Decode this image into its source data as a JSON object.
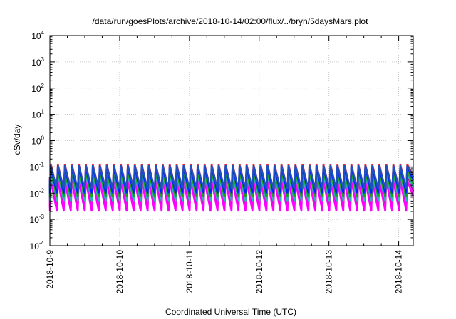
{
  "chart_data": {
    "type": "line",
    "title": "/data/run/goesPlots/archive/2018-10-14/02:00/flux/../bryn/5daysMars.plot",
    "xlabel": "Coordinated Universal Time (UTC)",
    "ylabel": "cSv/day",
    "x_tick_labels": [
      "2018-10-9",
      "2018-10-10",
      "2018-10-11",
      "2018-10-12",
      "2018-10-13",
      "2018-10-14"
    ],
    "xlim": [
      "2018-10-09T00:00",
      "2018-10-14T05:00"
    ],
    "y_scale": "log",
    "ylim": [
      0.0001,
      10000
    ],
    "y_ticks": [
      {
        "value": 0.0001,
        "base": "10",
        "exp": "-4"
      },
      {
        "value": 0.001,
        "base": "10",
        "exp": "-3"
      },
      {
        "value": 0.01,
        "base": "10",
        "exp": "-2"
      },
      {
        "value": 0.1,
        "base": "10",
        "exp": "-1"
      },
      {
        "value": 1,
        "base": "10",
        "exp": "0"
      },
      {
        "value": 10,
        "base": "10",
        "exp": "1"
      },
      {
        "value": 100,
        "base": "10",
        "exp": "2"
      },
      {
        "value": 1000,
        "base": "10",
        "exp": "3"
      },
      {
        "value": 10000,
        "base": "10",
        "exp": "4"
      }
    ],
    "grid": true,
    "legend": "none",
    "pattern": "sawtooth",
    "cycles": 52,
    "series": [
      {
        "color": "#ff2a2a",
        "peak": 0.13,
        "trough": 0.013
      },
      {
        "color": "#b000b0",
        "peak": 0.05,
        "trough": 0.0028
      },
      {
        "color": "#ff00ff",
        "peak": 0.03,
        "trough": 0.002
      },
      {
        "color": "#2ab5b5",
        "peak": 0.055,
        "trough": 0.005
      },
      {
        "color": "#1aa01a",
        "peak": 0.07,
        "trough": 0.007
      },
      {
        "color": "#0022ff",
        "peak": 0.1,
        "trough": 0.01
      },
      {
        "color": "#2050c0",
        "peak": 0.115,
        "trough": 0.014
      }
    ]
  }
}
